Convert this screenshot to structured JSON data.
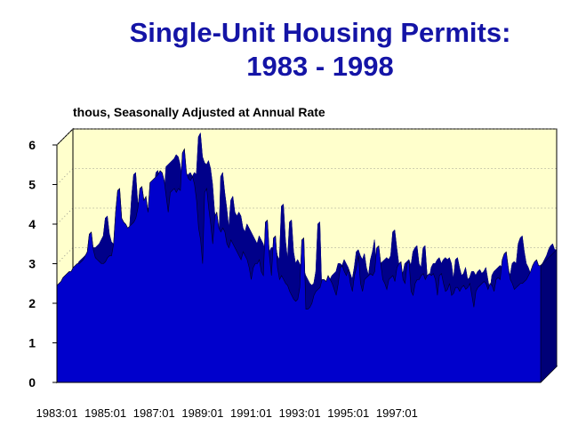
{
  "title": {
    "line1": "Single-Unit Housing Permits:",
    "line2": "1983 - 1998"
  },
  "colors": {
    "title": "#1414a6",
    "fill": "#0000cc",
    "wall": "#ffffcc",
    "frame": "#000000"
  },
  "chart_data": {
    "type": "area",
    "title": "Single-Unit Housing Permits: 1983 - 1998",
    "units_label": "thous, Seasonally Adjusted at Annual Rate",
    "xlabel": "",
    "ylabel": "",
    "ylim": [
      0,
      6
    ],
    "yticks": [
      "0",
      "1",
      "2",
      "3",
      "4",
      "5",
      "6"
    ],
    "xticks": [
      "1983:01",
      "1985:01",
      "1987:01",
      "1989:01",
      "1991:01",
      "1993:01",
      "1995:01",
      "1997:01"
    ],
    "grid": true,
    "x_start": "1983:01",
    "x_end": "1998:12",
    "series": [
      {
        "values": [
          2.45,
          2.5,
          2.55,
          2.65,
          2.7,
          2.75,
          2.8,
          2.8,
          2.9,
          2.95,
          3.0,
          3.0,
          3.05,
          3.1,
          3.2,
          3.3,
          3.75,
          3.8,
          3.35,
          3.15,
          3.1,
          3.05,
          3.0,
          3.0,
          3.05,
          3.15,
          3.2,
          3.2,
          3.5,
          4.3,
          4.85,
          4.9,
          4.15,
          4.05,
          4.0,
          3.9,
          3.95,
          4.0,
          4.05,
          4.15,
          4.4,
          4.9,
          4.95,
          4.6,
          4.7,
          4.3,
          5.05,
          5.1,
          5.15,
          5.2,
          5.25,
          5.35,
          5.3,
          5.1,
          4.7,
          4.3,
          4.8,
          4.85,
          4.9,
          4.8,
          4.9,
          4.85,
          5.8,
          5.9,
          5.3,
          5.15,
          5.1,
          5.2,
          5.0,
          4.6,
          3.9,
          3.6,
          3.0,
          4.8,
          4.9,
          4.4,
          4.0,
          3.5,
          4.2,
          4.3,
          3.9,
          3.8,
          3.9,
          3.8,
          3.5,
          3.4,
          3.6,
          3.5,
          3.4,
          3.3,
          3.2,
          3.1,
          3.3,
          3.2,
          3.1,
          2.9,
          2.6,
          2.9,
          3.0,
          3.0,
          3.1,
          2.8,
          2.7,
          4.05,
          4.1,
          3.2,
          2.7,
          3.65,
          3.7,
          2.9,
          2.6,
          2.7,
          2.6,
          2.5,
          2.45,
          2.3,
          2.2,
          2.1,
          2.05,
          2.1,
          2.4,
          3.6,
          3.65,
          1.85,
          1.85,
          1.9,
          2.0,
          2.2,
          2.3,
          2.35,
          2.4,
          2.6,
          2.6,
          2.55,
          2.7,
          2.6,
          2.5,
          2.35,
          2.2,
          2.5,
          2.9,
          2.95,
          2.8,
          2.7,
          2.85,
          2.5,
          2.3,
          2.7,
          2.9,
          3.2,
          2.5,
          2.3,
          2.6,
          2.65,
          2.7,
          2.75,
          2.7,
          2.8,
          3.4,
          3.45,
          3.0,
          2.6,
          2.5,
          2.35,
          2.6,
          2.65,
          2.7,
          2.55,
          2.9,
          3.0,
          3.05,
          2.6,
          2.5,
          3.0,
          3.05,
          2.3,
          2.2,
          2.5,
          2.6,
          2.6,
          2.7,
          2.75,
          2.6,
          2.7,
          2.75,
          2.7,
          2.75,
          2.6,
          2.2,
          2.7,
          2.75,
          2.5,
          2.3,
          2.35,
          2.5,
          2.2,
          2.25,
          2.4,
          2.4,
          2.3,
          2.4,
          2.45,
          2.35,
          2.4,
          2.5,
          2.2,
          1.9,
          2.3,
          2.4,
          2.45,
          2.5,
          2.55,
          2.5,
          2.35,
          2.5,
          2.45,
          2.3,
          2.6,
          2.65,
          2.6,
          3.1,
          3.25,
          3.3,
          2.9,
          2.6,
          2.5,
          2.35,
          2.4,
          2.45,
          2.5,
          2.5,
          2.55,
          2.6,
          2.7,
          2.8,
          2.95,
          3.05,
          3.1,
          2.95,
          2.95
        ]
      }
    ]
  }
}
